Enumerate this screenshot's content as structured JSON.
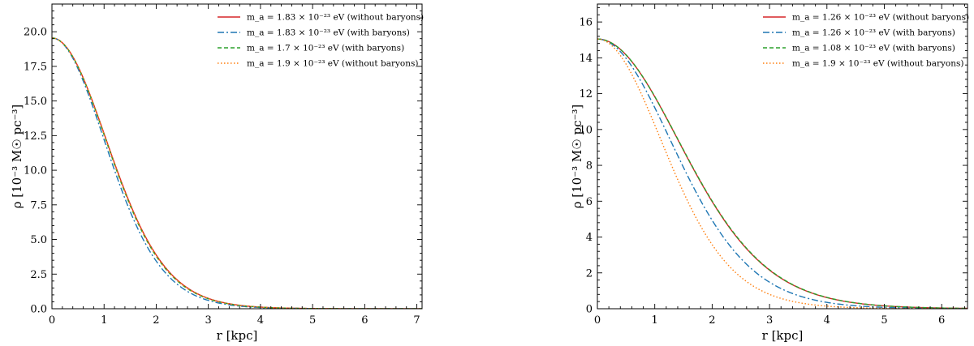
{
  "chart_data": [
    {
      "type": "line",
      "xlabel": "r [kpc]",
      "ylabel": "ρ [10⁻³ M☉ pc⁻³]",
      "xlim": [
        0,
        7.1
      ],
      "ylim": [
        0,
        22
      ],
      "xticks": [
        0,
        1,
        2,
        3,
        4,
        5,
        6,
        7
      ],
      "yticks": [
        0.0,
        2.5,
        5.0,
        7.5,
        10.0,
        12.5,
        15.0,
        17.5,
        20.0
      ],
      "ytick_labels": [
        "0.0",
        "2.5",
        "5.0",
        "7.5",
        "10.0",
        "12.5",
        "15.0",
        "17.5",
        "20.0"
      ],
      "legend_position": "top-right",
      "grid": false,
      "series": [
        {
          "name": "m_a = 1.83 × 10⁻²³ eV (without baryons)",
          "color": "#d62728",
          "dash": "solid",
          "rho0": 19.55,
          "rc": 2.55
        },
        {
          "name": "m_a = 1.83 × 10⁻²³ eV (with baryons)",
          "color": "#1f77b4",
          "dash": "dashdot",
          "rho0": 19.55,
          "rc": 2.45
        },
        {
          "name": "m_a = 1.7 × 10⁻²³ eV (with baryons)",
          "color": "#2ca02c",
          "dash": "dashed",
          "rho0": 19.55,
          "rc": 2.53
        },
        {
          "name": "m_a = 1.9 × 10⁻²³ eV (without baryons)",
          "color": "#ff7f0e",
          "dash": "dotted",
          "rho0": 19.55,
          "rc": 2.54
        }
      ]
    },
    {
      "type": "line",
      "xlabel": "r [kpc]",
      "ylabel": "ρ [10⁻³ M☉ pc⁻³]",
      "xlim": [
        0,
        6.45
      ],
      "ylim": [
        0,
        17
      ],
      "xticks": [
        0,
        1,
        2,
        3,
        4,
        5,
        6
      ],
      "yticks": [
        0,
        2,
        4,
        6,
        8,
        10,
        12,
        14,
        16
      ],
      "ytick_labels": [
        "0",
        "2",
        "4",
        "6",
        "8",
        "10",
        "12",
        "14",
        "16"
      ],
      "legend_position": "top-right",
      "grid": false,
      "series": [
        {
          "name": "m_a = 1.26 × 10⁻²³ eV (without baryons)",
          "color": "#d62728",
          "dash": "solid",
          "rho0": 15.05,
          "rc": 3.45
        },
        {
          "name": "m_a = 1.26 × 10⁻²³ eV (with baryons)",
          "color": "#1f77b4",
          "dash": "dashdot",
          "rho0": 15.05,
          "rc": 3.12
        },
        {
          "name": "m_a = 1.08 × 10⁻²³ eV (with baryons)",
          "color": "#2ca02c",
          "dash": "dashed",
          "rho0": 15.05,
          "rc": 3.46
        },
        {
          "name": "m_a = 1.9 × 10⁻²³ eV (without baryons)",
          "color": "#ff7f0e",
          "dash": "dotted",
          "rho0": 15.05,
          "rc": 2.72
        }
      ]
    }
  ]
}
